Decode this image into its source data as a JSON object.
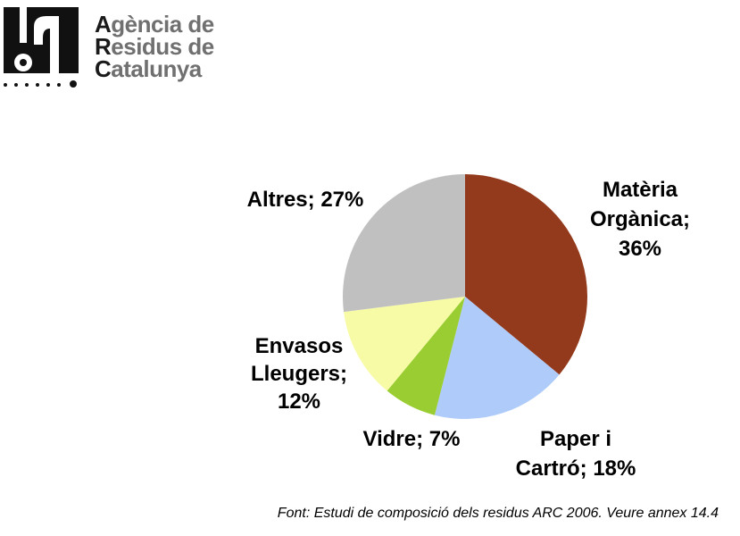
{
  "logo": {
    "lines": [
      {
        "initial": "A",
        "rest": "gència de"
      },
      {
        "initial": "R",
        "rest": "esidus de"
      },
      {
        "initial": "C",
        "rest": "atalunya"
      }
    ]
  },
  "chart_data": {
    "type": "pie",
    "title": "",
    "slices": [
      {
        "label_lines": [
          "Matèria",
          "Orgànica;",
          "36%"
        ],
        "category": "Matèria Orgànica",
        "value": 36,
        "color": "#943A1C"
      },
      {
        "label_lines": [
          "Paper i",
          "Cartró; 18%"
        ],
        "category": "Paper i Cartró",
        "value": 18,
        "color": "#AECBFA"
      },
      {
        "label_lines": [
          "Vidre; 7%"
        ],
        "category": "Vidre",
        "value": 7,
        "color": "#9ACD32"
      },
      {
        "label_lines": [
          "Envasos",
          "Lleugers;",
          "12%"
        ],
        "category": "Envasos Lleugers",
        "value": 12,
        "color": "#F7FBA6"
      },
      {
        "label_lines": [
          "Altres; 27%"
        ],
        "category": "Altres",
        "value": 27,
        "color": "#C0C0C0"
      }
    ],
    "start_angle_deg": 0,
    "direction": "clockwise",
    "legend": "none"
  },
  "footer": {
    "source": "Font: Estudi de composició dels residus ARC 2006. Veure annex 14.4"
  }
}
